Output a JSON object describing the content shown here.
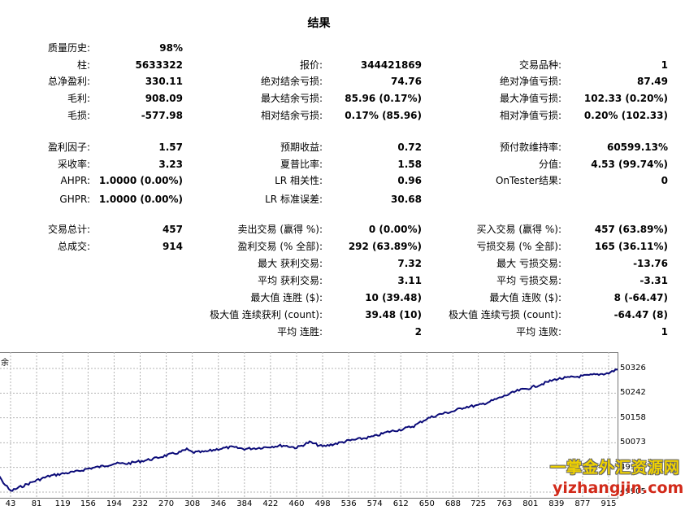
{
  "title": "结果",
  "col1": [
    {
      "label": "质量历史:",
      "value": "98%"
    },
    {
      "label": "柱:",
      "value": "5633322"
    },
    {
      "label": "总净盈利:",
      "value": "330.11"
    },
    {
      "label": "毛利:",
      "value": "908.09"
    },
    {
      "label": "毛损:",
      "value": "-577.98"
    },
    {
      "label": "盈利因子:",
      "value": "1.57"
    },
    {
      "label": "采收率:",
      "value": "3.23"
    },
    {
      "label": "AHPR:",
      "value": "1.0000 (0.00%)"
    },
    {
      "label": "GHPR:",
      "value": "1.0000 (0.00%)"
    },
    {
      "label": "交易总计:",
      "value": "457"
    },
    {
      "label": "总成交:",
      "value": "914"
    }
  ],
  "col2": [
    {
      "label": "报价:",
      "value": "344421869"
    },
    {
      "label": "绝对结余亏损:",
      "value": "74.76"
    },
    {
      "label": "最大结余亏损:",
      "value": "85.96 (0.17%)"
    },
    {
      "label": "相对结余亏损:",
      "value": "0.17% (85.96)"
    },
    {
      "label": "预期收益:",
      "value": "0.72"
    },
    {
      "label": "夏普比率:",
      "value": "1.58"
    },
    {
      "label": "LR 相关性:",
      "value": "0.96"
    },
    {
      "label": "LR 标准误差:",
      "value": "30.68"
    },
    {
      "label": "卖出交易 (赢得 %):",
      "value": "0 (0.00%)"
    },
    {
      "label": "盈利交易 (% 全部):",
      "value": "292 (63.89%)"
    },
    {
      "label": "最大 获利交易:",
      "value": "7.32"
    },
    {
      "label": "平均 获利交易:",
      "value": "3.11"
    },
    {
      "label": "最大值 连胜 ($):",
      "value": "10 (39.48)"
    },
    {
      "label": "极大值 连续获利 (count):",
      "value": "39.48 (10)"
    },
    {
      "label": "平均 连胜:",
      "value": "2"
    }
  ],
  "col3": [
    {
      "label": "交易品种:",
      "value": "1"
    },
    {
      "label": "绝对净值亏损:",
      "value": "87.49"
    },
    {
      "label": "最大净值亏损:",
      "value": "102.33 (0.20%)"
    },
    {
      "label": "相对净值亏损:",
      "value": "0.20% (102.33)"
    },
    {
      "label": "预付款维持率:",
      "value": "60599.13%"
    },
    {
      "label": "分值:",
      "value": "4.53 (99.74%)"
    },
    {
      "label": "OnTester结果:",
      "value": "0"
    },
    {
      "label": "买入交易 (赢得 %):",
      "value": "457 (63.89%)"
    },
    {
      "label": "亏损交易 (% 全部):",
      "value": "165 (36.11%)"
    },
    {
      "label": "最大 亏损交易:",
      "value": "-13.76"
    },
    {
      "label": "平均 亏损交易:",
      "value": "-3.31"
    },
    {
      "label": "最大值 连败 ($):",
      "value": "8 (-64.47)"
    },
    {
      "label": "极大值 连续亏损 (count):",
      "value": "-64.47 (8)"
    },
    {
      "label": "平均 连败:",
      "value": "1"
    }
  ],
  "chart": {
    "legend": "余",
    "line_color": "#0a0a78",
    "y_ticks": [
      "50326",
      "50242",
      "50158",
      "50073",
      "49989",
      "49905"
    ],
    "x_ticks": [
      "43",
      "81",
      "119",
      "156",
      "194",
      "232",
      "270",
      "308",
      "346",
      "384",
      "422",
      "460",
      "498",
      "536",
      "574",
      "612",
      "650",
      "688",
      "725",
      "763",
      "801",
      "839",
      "877",
      "915"
    ]
  },
  "chart_data": {
    "type": "line",
    "y_ticks": [
      50326,
      50242,
      50158,
      50073,
      49989,
      49905
    ],
    "x_ticks": [
      43,
      81,
      119,
      156,
      194,
      232,
      270,
      308,
      346,
      384,
      422,
      460,
      498,
      536,
      574,
      612,
      650,
      688,
      725,
      763,
      801,
      839,
      877,
      915
    ],
    "ylim": [
      49905,
      50326
    ],
    "grid": true,
    "series": [
      {
        "x": [
          5,
          20,
          30,
          43,
          60,
          81,
          100,
          119,
          140,
          156,
          175,
          194,
          213,
          232,
          251,
          270,
          289,
          300,
          308,
          327,
          346,
          365,
          384,
          403,
          422,
          441,
          460,
          479,
          498,
          517,
          536,
          555,
          574,
          593,
          612,
          631,
          650,
          669,
          688,
          706,
          725,
          744,
          763,
          782,
          801,
          820,
          839,
          858,
          877,
          896,
          915,
          930
        ],
        "y": [
          49995,
          49988,
          49945,
          49908,
          49925,
          49945,
          49960,
          49968,
          49975,
          49985,
          49992,
          50002,
          50002,
          50010,
          50018,
          50030,
          50040,
          50050,
          50040,
          50042,
          50052,
          50058,
          50052,
          50055,
          50060,
          50064,
          50056,
          50075,
          50060,
          50070,
          50080,
          50087,
          50095,
          50110,
          50118,
          50130,
          50155,
          50170,
          50180,
          50195,
          50200,
          50215,
          50232,
          50250,
          50260,
          50275,
          50290,
          50295,
          50300,
          50305,
          50310,
          50326
        ]
      }
    ]
  },
  "watermark": {
    "cn": "一掌金外汇资源网",
    "url": "yizhangjin.com"
  }
}
